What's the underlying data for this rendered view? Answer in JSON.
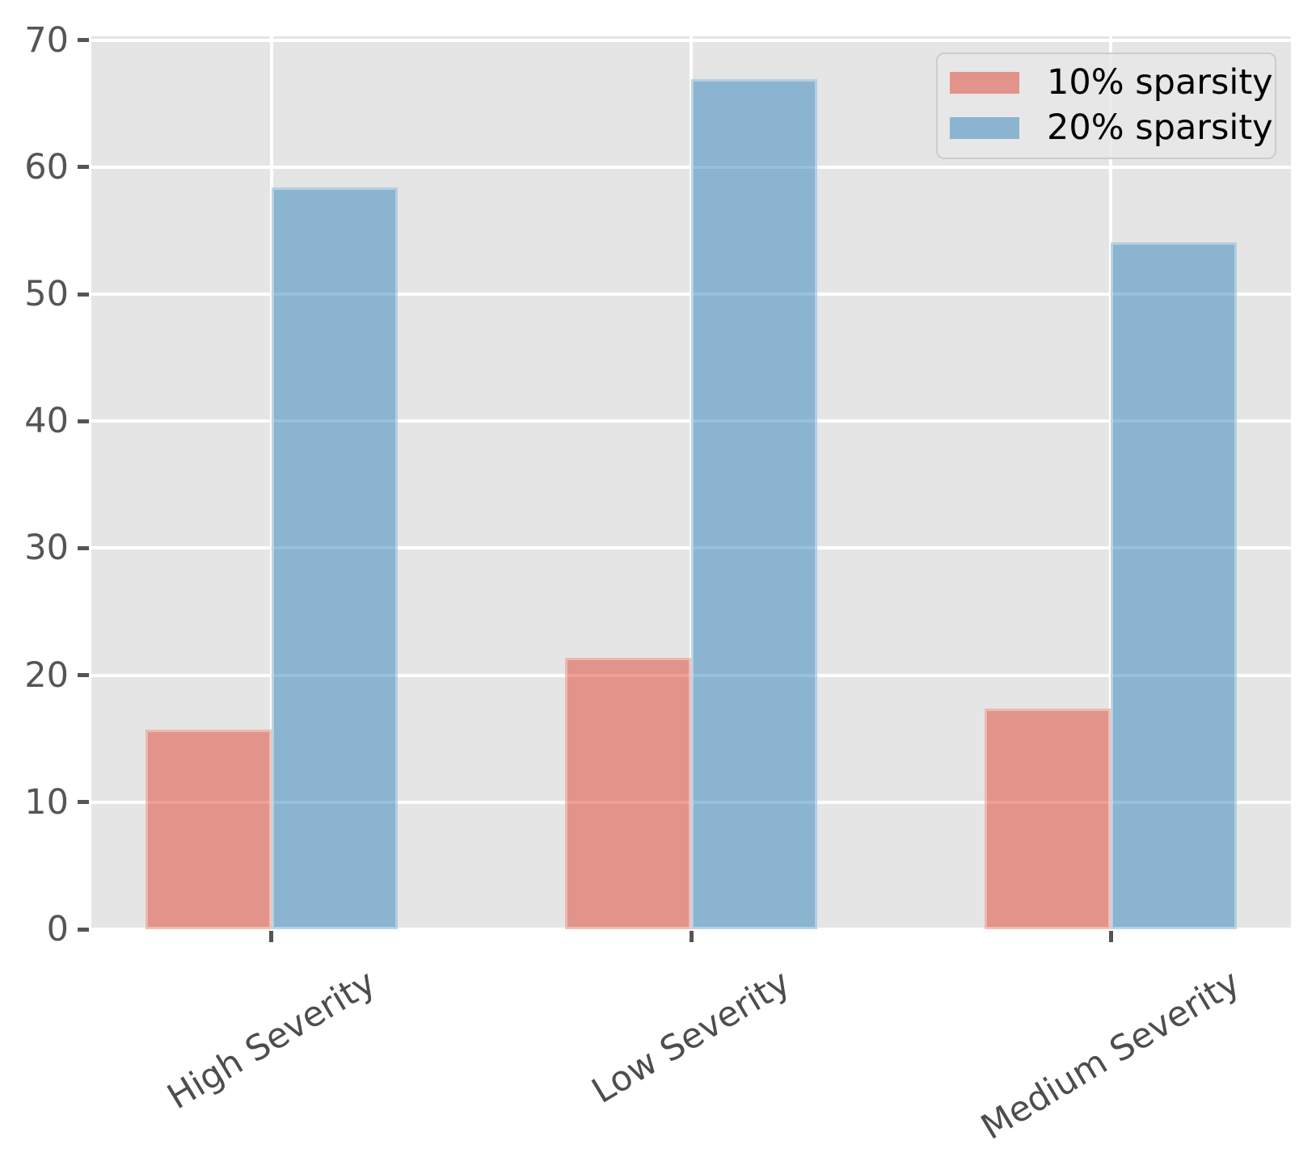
{
  "chart_data": {
    "type": "bar",
    "title": "",
    "xlabel": "",
    "ylabel": "",
    "categories": [
      "High Severity",
      "Low Severity",
      "Medium Severity"
    ],
    "series": [
      {
        "name": "10% sparsity",
        "fill": "rgba(224,82,64,0.55)",
        "swatch": "#E2948A",
        "values": [
          15.7,
          21.4,
          17.4
        ]
      },
      {
        "name": "20% sparsity",
        "fill": "rgba(64,140,191,0.55)",
        "swatch": "#8AB4D0",
        "values": [
          58.4,
          66.9,
          54.1
        ]
      }
    ],
    "yticks": [
      0,
      10,
      20,
      30,
      40,
      50,
      60,
      70
    ],
    "ylim": [
      0,
      70.3
    ],
    "grid": true,
    "legend_position": "upper right",
    "plot_background": "#E5E5E5",
    "page_background": "#FFFFFF",
    "gridline_color": "#FFFFFF",
    "tick_color": "#555555",
    "xtick_label_color": "#4D4D4D",
    "legend_text_color": "#000000",
    "legend_border_color": "#CCCCCC",
    "bar_edge_color": "rgba(255,255,255,0.35)",
    "xtick_label_rotation_deg": 31
  }
}
